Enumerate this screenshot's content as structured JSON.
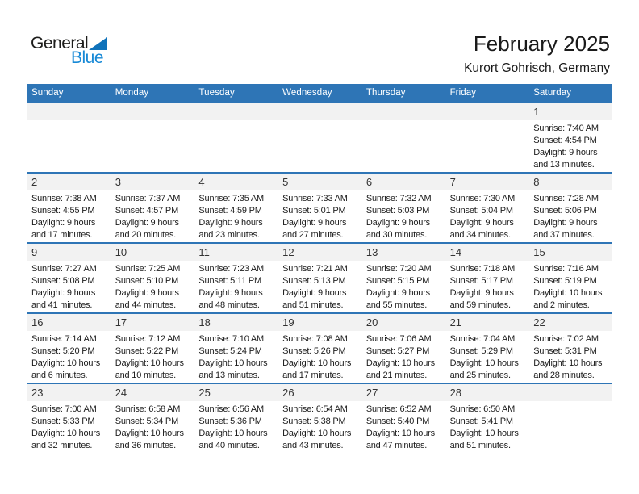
{
  "logo": {
    "text_black": "General",
    "text_blue": "Blue"
  },
  "header": {
    "title": "February 2025",
    "subtitle": "Kurort Gohrisch, Germany"
  },
  "calendar": {
    "weekday_headers": [
      "Sunday",
      "Monday",
      "Tuesday",
      "Wednesday",
      "Thursday",
      "Friday",
      "Saturday"
    ],
    "labels": {
      "sunrise": "Sunrise:",
      "sunset": "Sunset:",
      "daylight": "Daylight:"
    },
    "weeks": [
      [
        null,
        null,
        null,
        null,
        null,
        null,
        {
          "day": 1,
          "sunrise": "7:40 AM",
          "sunset": "4:54 PM",
          "daylight": "9 hours and 13 minutes."
        }
      ],
      [
        {
          "day": 2,
          "sunrise": "7:38 AM",
          "sunset": "4:55 PM",
          "daylight": "9 hours and 17 minutes."
        },
        {
          "day": 3,
          "sunrise": "7:37 AM",
          "sunset": "4:57 PM",
          "daylight": "9 hours and 20 minutes."
        },
        {
          "day": 4,
          "sunrise": "7:35 AM",
          "sunset": "4:59 PM",
          "daylight": "9 hours and 23 minutes."
        },
        {
          "day": 5,
          "sunrise": "7:33 AM",
          "sunset": "5:01 PM",
          "daylight": "9 hours and 27 minutes."
        },
        {
          "day": 6,
          "sunrise": "7:32 AM",
          "sunset": "5:03 PM",
          "daylight": "9 hours and 30 minutes."
        },
        {
          "day": 7,
          "sunrise": "7:30 AM",
          "sunset": "5:04 PM",
          "daylight": "9 hours and 34 minutes."
        },
        {
          "day": 8,
          "sunrise": "7:28 AM",
          "sunset": "5:06 PM",
          "daylight": "9 hours and 37 minutes."
        }
      ],
      [
        {
          "day": 9,
          "sunrise": "7:27 AM",
          "sunset": "5:08 PM",
          "daylight": "9 hours and 41 minutes."
        },
        {
          "day": 10,
          "sunrise": "7:25 AM",
          "sunset": "5:10 PM",
          "daylight": "9 hours and 44 minutes."
        },
        {
          "day": 11,
          "sunrise": "7:23 AM",
          "sunset": "5:11 PM",
          "daylight": "9 hours and 48 minutes."
        },
        {
          "day": 12,
          "sunrise": "7:21 AM",
          "sunset": "5:13 PM",
          "daylight": "9 hours and 51 minutes."
        },
        {
          "day": 13,
          "sunrise": "7:20 AM",
          "sunset": "5:15 PM",
          "daylight": "9 hours and 55 minutes."
        },
        {
          "day": 14,
          "sunrise": "7:18 AM",
          "sunset": "5:17 PM",
          "daylight": "9 hours and 59 minutes."
        },
        {
          "day": 15,
          "sunrise": "7:16 AM",
          "sunset": "5:19 PM",
          "daylight": "10 hours and 2 minutes."
        }
      ],
      [
        {
          "day": 16,
          "sunrise": "7:14 AM",
          "sunset": "5:20 PM",
          "daylight": "10 hours and 6 minutes."
        },
        {
          "day": 17,
          "sunrise": "7:12 AM",
          "sunset": "5:22 PM",
          "daylight": "10 hours and 10 minutes."
        },
        {
          "day": 18,
          "sunrise": "7:10 AM",
          "sunset": "5:24 PM",
          "daylight": "10 hours and 13 minutes."
        },
        {
          "day": 19,
          "sunrise": "7:08 AM",
          "sunset": "5:26 PM",
          "daylight": "10 hours and 17 minutes."
        },
        {
          "day": 20,
          "sunrise": "7:06 AM",
          "sunset": "5:27 PM",
          "daylight": "10 hours and 21 minutes."
        },
        {
          "day": 21,
          "sunrise": "7:04 AM",
          "sunset": "5:29 PM",
          "daylight": "10 hours and 25 minutes."
        },
        {
          "day": 22,
          "sunrise": "7:02 AM",
          "sunset": "5:31 PM",
          "daylight": "10 hours and 28 minutes."
        }
      ],
      [
        {
          "day": 23,
          "sunrise": "7:00 AM",
          "sunset": "5:33 PM",
          "daylight": "10 hours and 32 minutes."
        },
        {
          "day": 24,
          "sunrise": "6:58 AM",
          "sunset": "5:34 PM",
          "daylight": "10 hours and 36 minutes."
        },
        {
          "day": 25,
          "sunrise": "6:56 AM",
          "sunset": "5:36 PM",
          "daylight": "10 hours and 40 minutes."
        },
        {
          "day": 26,
          "sunrise": "6:54 AM",
          "sunset": "5:38 PM",
          "daylight": "10 hours and 43 minutes."
        },
        {
          "day": 27,
          "sunrise": "6:52 AM",
          "sunset": "5:40 PM",
          "daylight": "10 hours and 47 minutes."
        },
        {
          "day": 28,
          "sunrise": "6:50 AM",
          "sunset": "5:41 PM",
          "daylight": "10 hours and 51 minutes."
        },
        null
      ]
    ]
  },
  "colors": {
    "header_blue": "#2E75B6",
    "week_border_blue": "#2E75B6",
    "day_band_gray": "#F2F2F2",
    "logo_text_blue": "#1789D6",
    "logo_triangle_blue": "#0F72BA",
    "header_text": "#FFFFFF",
    "body_text": "#1C1C1C"
  }
}
